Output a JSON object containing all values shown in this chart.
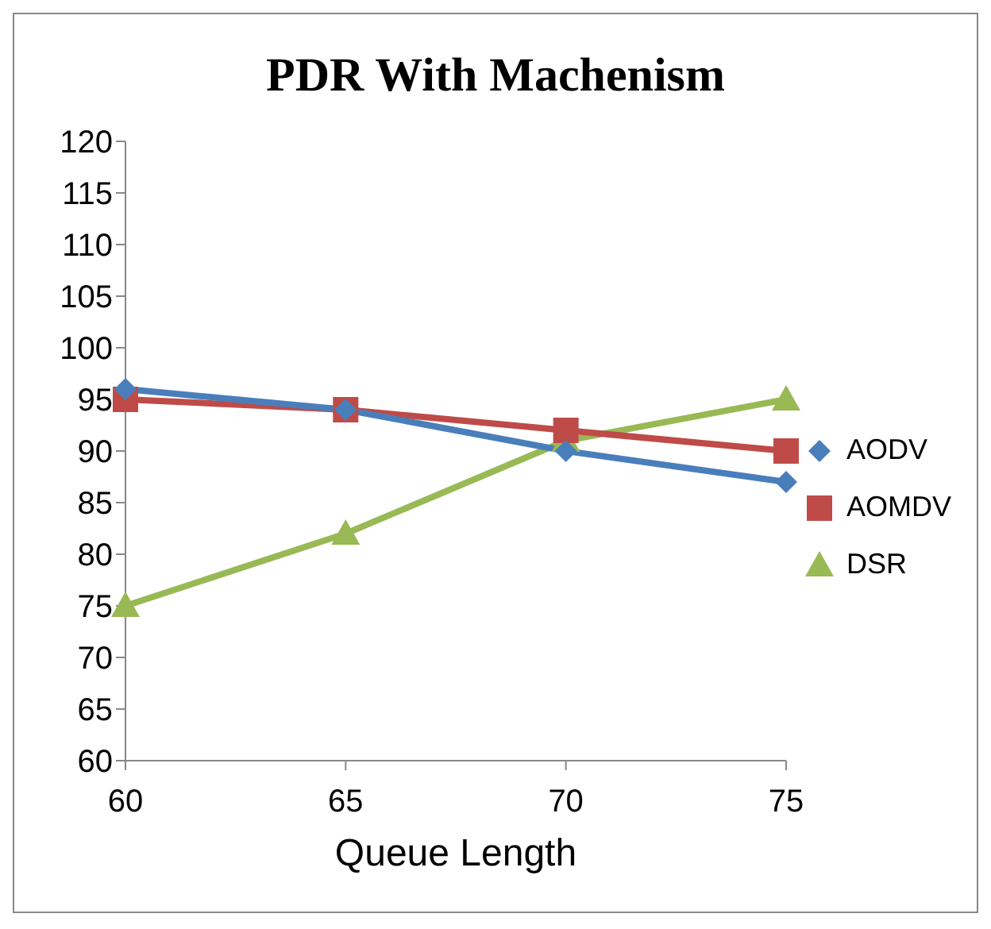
{
  "chart_data": {
    "type": "line",
    "title": "PDR  With Machenism",
    "xlabel": "Queue Length",
    "categories": [
      "60",
      "65",
      "70",
      "75"
    ],
    "series": [
      {
        "name": "AODV",
        "color": "#4a7ebb",
        "values": [
          96,
          94,
          90,
          87
        ],
        "marker": "diamond"
      },
      {
        "name": "AOMDV",
        "color": "#be4b48",
        "values": [
          95,
          94,
          92,
          90
        ],
        "marker": "square"
      },
      {
        "name": "DSR",
        "color": "#98b954",
        "values": [
          75,
          82,
          91,
          95
        ],
        "marker": "triangle"
      }
    ],
    "ylim": [
      60,
      120
    ],
    "yticks": [
      60,
      65,
      70,
      75,
      80,
      85,
      90,
      95,
      100,
      105,
      110,
      115,
      120
    ],
    "grid": false,
    "legend": "right"
  }
}
